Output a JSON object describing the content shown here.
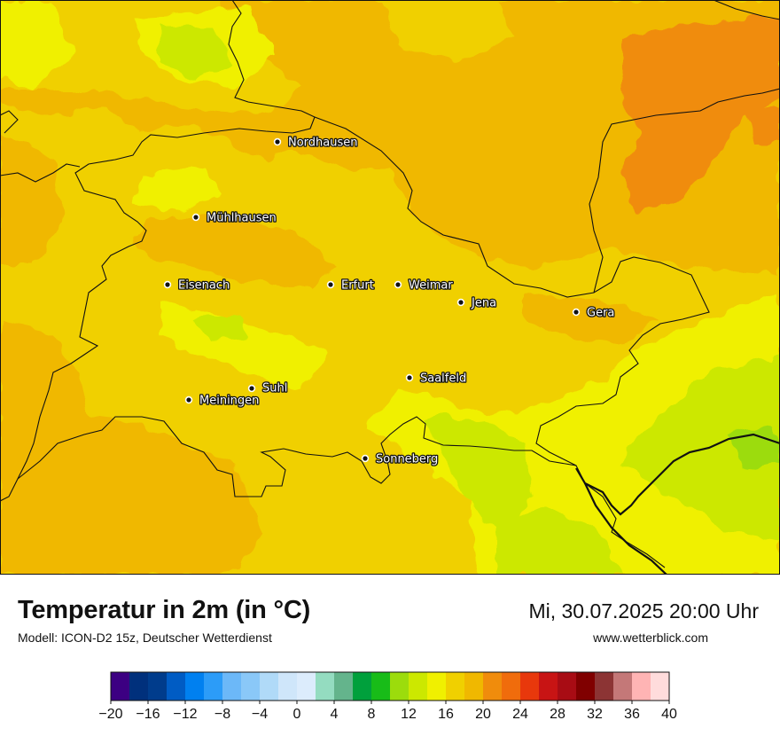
{
  "map": {
    "cities": [
      {
        "name": "Nordhausen"
      },
      {
        "name": "Mühlhausen"
      },
      {
        "name": "Eisenach"
      },
      {
        "name": "Erfurt"
      },
      {
        "name": "Weimar"
      },
      {
        "name": "Jena"
      },
      {
        "name": "Gera"
      },
      {
        "name": "Saalfeld"
      },
      {
        "name": "Suhl"
      },
      {
        "name": "Meiningen"
      },
      {
        "name": "Sonneberg"
      }
    ],
    "colors": {
      "yellow_green": "#e6f000",
      "light_green": "#c7e80c",
      "yellow": "#f0f000",
      "gold": "#f0d000",
      "amber": "#f0b800",
      "orange": "#f08c0c",
      "border": "#111111"
    }
  },
  "header": {
    "title": "Temperatur in 2m (in °C)",
    "model": "Modell: ICON-D2 15z, Deutscher Wetterdienst",
    "datetime": "Mi, 30.07.2025 20:00 Uhr",
    "website": "www.wetterblick.com"
  },
  "legend": {
    "tick_labels": [
      "−20",
      "−16",
      "−12",
      "−8",
      "−4",
      "0",
      "4",
      "8",
      "12",
      "16",
      "20",
      "24",
      "28",
      "32",
      "36",
      "40"
    ],
    "colors": [
      "#3c0082",
      "#00307c",
      "#003c8c",
      "#005cc4",
      "#0080f0",
      "#2c9cf8",
      "#6cb8f8",
      "#8ac8f8",
      "#b0daf8",
      "#cfe6fa",
      "#dcecfc",
      "#94dcc0",
      "#64b48c",
      "#00a03c",
      "#18bc18",
      "#9cdc0c",
      "#cce800",
      "#f0f000",
      "#f0d000",
      "#f0b800",
      "#f08c0c",
      "#f06c0c",
      "#e8380c",
      "#c81414",
      "#a80c14",
      "#800000",
      "#8c3434",
      "#c47878",
      "#ffb4b4",
      "#ffdcdc"
    ]
  }
}
